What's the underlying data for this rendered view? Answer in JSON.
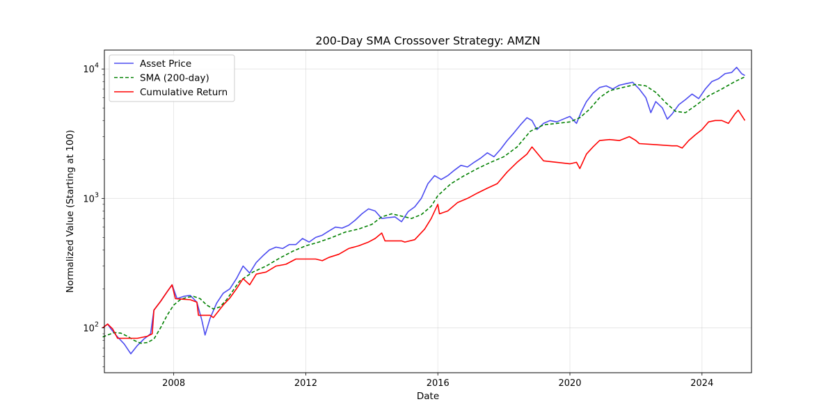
{
  "chart_data": {
    "type": "line",
    "title": "200-Day SMA Crossover Strategy: AMZN",
    "xlabel": "Date",
    "ylabel": "Normalized Value (Starting at 100)",
    "yscale": "log",
    "xlim": [
      2005.9,
      2025.5
    ],
    "ylim": [
      45,
      14000
    ],
    "grid": true,
    "legend_position": "top-left",
    "x_ticks": [
      {
        "value": 2008,
        "label": "2008"
      },
      {
        "value": 2012,
        "label": "2012"
      },
      {
        "value": 2016,
        "label": "2016"
      },
      {
        "value": 2020,
        "label": "2020"
      },
      {
        "value": 2024,
        "label": "2024"
      }
    ],
    "y_ticks": [
      {
        "value": 100,
        "base": "10",
        "exp": "2"
      },
      {
        "value": 1000,
        "base": "10",
        "exp": "3"
      },
      {
        "value": 10000,
        "base": "10",
        "exp": "4"
      }
    ],
    "series": [
      {
        "name": "Asset Price",
        "color": "#4b4bf0",
        "style": "solid",
        "x": [
          2005.85,
          2006.0,
          2006.1,
          2006.3,
          2006.5,
          2006.7,
          2006.9,
          2007.1,
          2007.3,
          2007.4,
          2007.6,
          2007.8,
          2007.95,
          2008.1,
          2008.3,
          2008.5,
          2008.7,
          2008.85,
          2008.95,
          2009.1,
          2009.3,
          2009.5,
          2009.7,
          2009.9,
          2010.1,
          2010.3,
          2010.5,
          2010.7,
          2010.9,
          2011.1,
          2011.3,
          2011.5,
          2011.7,
          2011.9,
          2012.1,
          2012.3,
          2012.5,
          2012.7,
          2012.9,
          2013.1,
          2013.3,
          2013.5,
          2013.7,
          2013.9,
          2014.1,
          2014.3,
          2014.5,
          2014.7,
          2014.9,
          2015.1,
          2015.3,
          2015.5,
          2015.7,
          2015.9,
          2016.1,
          2016.3,
          2016.5,
          2016.7,
          2016.9,
          2017.1,
          2017.3,
          2017.5,
          2017.7,
          2017.9,
          2018.1,
          2018.3,
          2018.5,
          2018.7,
          2018.85,
          2019.0,
          2019.2,
          2019.4,
          2019.6,
          2019.8,
          2020.0,
          2020.2,
          2020.35,
          2020.5,
          2020.7,
          2020.9,
          2021.1,
          2021.3,
          2021.5,
          2021.7,
          2021.9,
          2022.1,
          2022.3,
          2022.45,
          2022.6,
          2022.8,
          2022.95,
          2023.1,
          2023.3,
          2023.5,
          2023.7,
          2023.9,
          2024.1,
          2024.3,
          2024.5,
          2024.7,
          2024.9,
          2025.05,
          2025.2,
          2025.3
        ],
        "values": [
          100,
          107,
          98,
          85,
          75,
          63,
          73,
          82,
          90,
          137,
          160,
          190,
          215,
          168,
          175,
          178,
          158,
          115,
          88,
          118,
          155,
          185,
          200,
          240,
          300,
          265,
          320,
          360,
          400,
          420,
          410,
          440,
          440,
          490,
          460,
          500,
          520,
          560,
          600,
          590,
          620,
          680,
          760,
          830,
          800,
          700,
          710,
          720,
          660,
          790,
          860,
          1000,
          1300,
          1500,
          1400,
          1500,
          1650,
          1800,
          1750,
          1900,
          2050,
          2250,
          2100,
          2400,
          2800,
          3200,
          3700,
          4200,
          4000,
          3400,
          3800,
          4000,
          3900,
          4100,
          4300,
          3800,
          4700,
          5600,
          6500,
          7200,
          7400,
          7000,
          7500,
          7700,
          7900,
          7000,
          6000,
          4600,
          5600,
          5000,
          4100,
          4500,
          5300,
          5800,
          6400,
          5900,
          7000,
          8000,
          8400,
          9200,
          9400,
          10300,
          9200,
          8900
        ]
      },
      {
        "name": "SMA (200-day)",
        "color": "#008000",
        "style": "dashed",
        "x": [
          2005.85,
          2006.0,
          2006.2,
          2006.4,
          2006.6,
          2006.8,
          2007.0,
          2007.2,
          2007.4,
          2007.6,
          2007.8,
          2008.0,
          2008.2,
          2008.4,
          2008.6,
          2008.8,
          2009.0,
          2009.2,
          2009.4,
          2009.6,
          2009.8,
          2010.0,
          2010.4,
          2010.8,
          2011.2,
          2011.6,
          2012.0,
          2012.4,
          2012.8,
          2013.2,
          2013.6,
          2014.0,
          2014.3,
          2014.6,
          2014.9,
          2015.2,
          2015.5,
          2015.8,
          2016.0,
          2016.4,
          2016.8,
          2017.2,
          2017.6,
          2018.0,
          2018.4,
          2018.8,
          2019.2,
          2019.6,
          2020.0,
          2020.3,
          2020.6,
          2020.9,
          2021.2,
          2021.6,
          2022.0,
          2022.3,
          2022.6,
          2022.9,
          2023.2,
          2023.5,
          2023.8,
          2024.2,
          2024.6,
          2025.0,
          2025.3
        ],
        "values": [
          85,
          88,
          92,
          91,
          86,
          80,
          76,
          77,
          82,
          100,
          125,
          150,
          165,
          172,
          175,
          168,
          150,
          140,
          145,
          165,
          195,
          230,
          270,
          300,
          345,
          390,
          430,
          460,
          500,
          550,
          580,
          630,
          720,
          760,
          730,
          700,
          750,
          870,
          1050,
          1300,
          1500,
          1700,
          1900,
          2100,
          2500,
          3300,
          3700,
          3800,
          3900,
          4200,
          4900,
          6000,
          6800,
          7200,
          7600,
          7400,
          6600,
          5500,
          4700,
          4600,
          5200,
          6200,
          7000,
          8000,
          8700
        ]
      },
      {
        "name": "Cumulative Return",
        "color": "#ff0000",
        "style": "solid",
        "x": [
          2005.85,
          2006.0,
          2006.15,
          2006.3,
          2006.9,
          2007.2,
          2007.35,
          2007.4,
          2007.6,
          2007.8,
          2007.95,
          2008.05,
          2008.5,
          2008.7,
          2008.75,
          2009.1,
          2009.2,
          2009.5,
          2009.7,
          2009.9,
          2010.1,
          2010.3,
          2010.5,
          2010.8,
          2011.1,
          2011.4,
          2011.7,
          2011.8,
          2012.3,
          2012.5,
          2012.7,
          2013.0,
          2013.3,
          2013.6,
          2013.9,
          2014.1,
          2014.3,
          2014.4,
          2014.9,
          2015.0,
          2015.3,
          2015.6,
          2015.8,
          2016.0,
          2016.05,
          2016.3,
          2016.6,
          2016.9,
          2017.2,
          2017.5,
          2017.8,
          2018.1,
          2018.4,
          2018.7,
          2018.85,
          2019.2,
          2019.6,
          2020.0,
          2020.2,
          2020.3,
          2020.5,
          2020.7,
          2020.9,
          2021.2,
          2021.5,
          2021.8,
          2022.0,
          2022.1,
          2022.6,
          2023.1,
          2023.25,
          2023.4,
          2023.6,
          2023.8,
          2024.0,
          2024.2,
          2024.4,
          2024.6,
          2024.8,
          2025.0,
          2025.1,
          2025.3
        ],
        "values": [
          100,
          107,
          98,
          83,
          83,
          86,
          90,
          137,
          160,
          190,
          215,
          168,
          165,
          158,
          125,
          125,
          120,
          150,
          170,
          200,
          240,
          215,
          260,
          270,
          300,
          310,
          340,
          340,
          340,
          330,
          350,
          370,
          410,
          430,
          460,
          490,
          540,
          470,
          470,
          460,
          480,
          580,
          700,
          900,
          760,
          800,
          930,
          1000,
          1100,
          1200,
          1300,
          1600,
          1900,
          2200,
          2500,
          1950,
          1900,
          1850,
          1900,
          1700,
          2200,
          2500,
          2800,
          2850,
          2800,
          3000,
          2800,
          2650,
          2600,
          2550,
          2550,
          2450,
          2800,
          3100,
          3400,
          3900,
          4000,
          4000,
          3800,
          4500,
          4800,
          4000
        ]
      }
    ]
  }
}
